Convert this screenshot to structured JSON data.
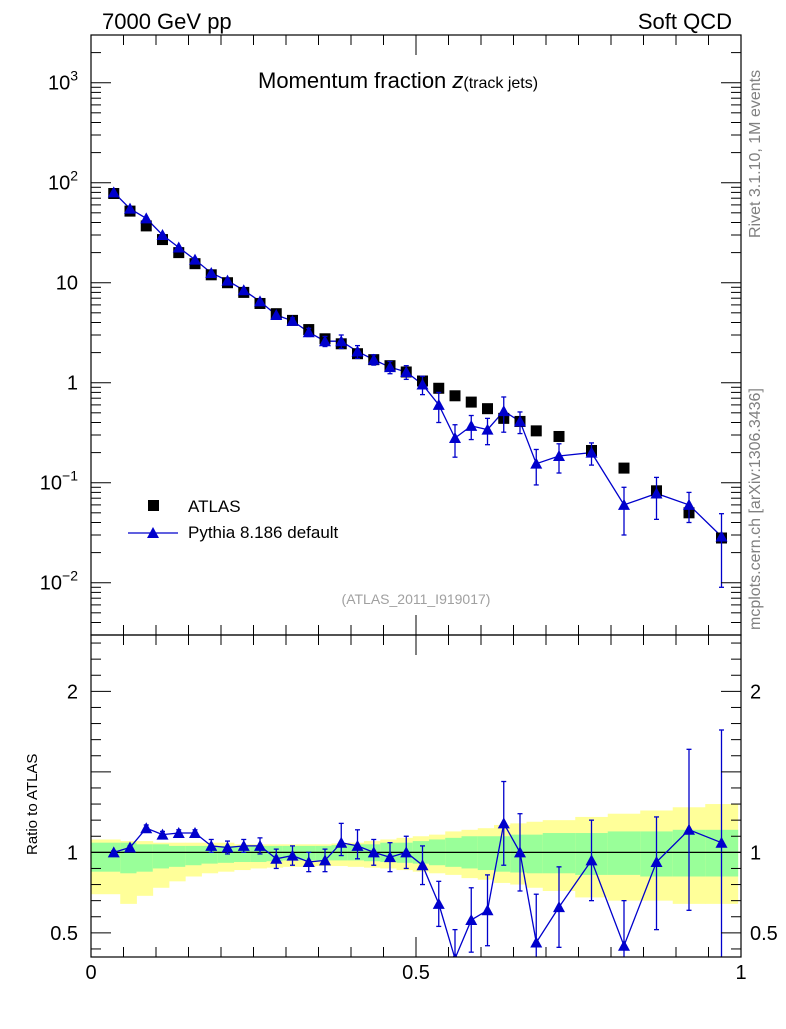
{
  "header": {
    "left": "7000 GeV pp",
    "right": "Soft QCD"
  },
  "side_labels": {
    "upper": "Rivet 3.1.10,  1M events",
    "lower": "mcplots.cern.ch [arXiv:1306.3436]"
  },
  "colors": {
    "mc": "#0000cc",
    "data": "#000000",
    "band_inner": "#99ff99",
    "band_outer": "#ffff99"
  },
  "chart_data": [
    {
      "type": "scatter",
      "panel": "main",
      "title_main": "Momentum fraction ",
      "title_var": "z",
      "title_sub": "(track jets)",
      "watermark": "(ATLAS_2011_I919017)",
      "xlim": [
        0,
        1
      ],
      "ylim": [
        0.003,
        3000
      ],
      "yscale": "log",
      "y_tick_labels": [
        {
          "value": 0.01,
          "base": "10",
          "exp": "−2"
        },
        {
          "value": 0.1,
          "base": "10",
          "exp": "−1"
        },
        {
          "value": 1,
          "base": "1",
          "exp": ""
        },
        {
          "value": 10,
          "base": "10",
          "exp": ""
        },
        {
          "value": 100,
          "base": "10",
          "exp": "2"
        },
        {
          "value": 1000,
          "base": "10",
          "exp": "3"
        }
      ],
      "legend": {
        "position": "bottom-left",
        "entries": [
          "ATLAS",
          "Pythia 8.186 default"
        ]
      },
      "series": [
        {
          "name": "ATLAS",
          "marker": "square",
          "x": [
            0.035,
            0.06,
            0.085,
            0.11,
            0.135,
            0.16,
            0.185,
            0.21,
            0.235,
            0.26,
            0.285,
            0.31,
            0.335,
            0.36,
            0.385,
            0.41,
            0.435,
            0.46,
            0.485,
            0.51,
            0.535,
            0.56,
            0.585,
            0.61,
            0.635,
            0.66,
            0.685,
            0.72,
            0.77,
            0.82,
            0.87,
            0.92,
            0.97
          ],
          "y": [
            78,
            52,
            37,
            27,
            20,
            15.5,
            12,
            10,
            8,
            6.2,
            4.9,
            4.2,
            3.4,
            2.75,
            2.45,
            1.95,
            1.7,
            1.48,
            1.28,
            1.04,
            0.88,
            0.74,
            0.64,
            0.55,
            0.44,
            0.41,
            0.33,
            0.29,
            0.21,
            0.14,
            0.083,
            0.05,
            0.028
          ]
        },
        {
          "name": "Pythia 8.186 default",
          "marker": "triangle",
          "x": [
            0.035,
            0.06,
            0.085,
            0.11,
            0.135,
            0.16,
            0.185,
            0.21,
            0.235,
            0.26,
            0.285,
            0.31,
            0.335,
            0.36,
            0.385,
            0.41,
            0.435,
            0.46,
            0.485,
            0.51,
            0.535,
            0.56,
            0.585,
            0.61,
            0.635,
            0.66,
            0.685,
            0.72,
            0.77,
            0.82,
            0.87,
            0.92,
            0.97
          ],
          "y": [
            80,
            55,
            44,
            30,
            22.5,
            17,
            12.5,
            10.5,
            8.4,
            6.5,
            4.75,
            4.15,
            3.2,
            2.6,
            2.6,
            2.05,
            1.7,
            1.43,
            1.28,
            0.96,
            0.6,
            0.28,
            0.37,
            0.34,
            0.52,
            0.41,
            0.155,
            0.185,
            0.2,
            0.06,
            0.078,
            0.06,
            0.029
          ],
          "err": [
            0,
            0,
            0,
            0,
            0,
            0,
            0,
            0,
            0,
            0,
            0,
            0.3,
            0.3,
            0.3,
            0.4,
            0.3,
            0.2,
            0.2,
            0.2,
            0.2,
            0.2,
            0.1,
            0.1,
            0.1,
            0.2,
            0.1,
            0.06,
            0.06,
            0.05,
            0.03,
            0.035,
            0.02,
            0.02
          ]
        }
      ]
    },
    {
      "type": "line",
      "panel": "ratio",
      "ylabel": "Ratio to ATLAS",
      "xlim": [
        0,
        1
      ],
      "ylim": [
        0.35,
        2.35
      ],
      "x_tick_labels": [
        {
          "value": 0,
          "label": "0"
        },
        {
          "value": 0.5,
          "label": "0.5"
        },
        {
          "value": 1,
          "label": "1"
        }
      ],
      "y_tick_labels": [
        {
          "value": 0.5,
          "label": "0.5"
        },
        {
          "value": 1,
          "label": "1"
        },
        {
          "value": 2,
          "label": "2"
        }
      ],
      "band_edges": [
        0.0,
        0.045,
        0.07,
        0.095,
        0.12,
        0.145,
        0.17,
        0.195,
        0.22,
        0.245,
        0.27,
        0.295,
        0.32,
        0.345,
        0.37,
        0.395,
        0.42,
        0.445,
        0.47,
        0.495,
        0.52,
        0.545,
        0.57,
        0.595,
        0.62,
        0.645,
        0.67,
        0.695,
        0.745,
        0.795,
        0.845,
        0.895,
        0.945,
        0.995
      ],
      "band_inner_lo": [
        0.88,
        0.87,
        0.88,
        0.9,
        0.91,
        0.92,
        0.93,
        0.935,
        0.94,
        0.94,
        0.945,
        0.95,
        0.95,
        0.95,
        0.95,
        0.95,
        0.945,
        0.94,
        0.935,
        0.93,
        0.92,
        0.91,
        0.9,
        0.89,
        0.88,
        0.875,
        0.87,
        0.87,
        0.86,
        0.86,
        0.85,
        0.85,
        0.85,
        0.85
      ],
      "band_inner_hi": [
        1.06,
        1.06,
        1.05,
        1.05,
        1.04,
        1.04,
        1.04,
        1.04,
        1.04,
        1.04,
        1.04,
        1.04,
        1.04,
        1.04,
        1.045,
        1.05,
        1.05,
        1.06,
        1.06,
        1.07,
        1.08,
        1.09,
        1.1,
        1.1,
        1.1,
        1.11,
        1.11,
        1.12,
        1.12,
        1.13,
        1.13,
        1.14,
        1.14,
        1.14
      ],
      "band_outer_lo": [
        0.74,
        0.68,
        0.73,
        0.78,
        0.82,
        0.85,
        0.87,
        0.88,
        0.89,
        0.9,
        0.905,
        0.91,
        0.91,
        0.915,
        0.915,
        0.91,
        0.905,
        0.9,
        0.89,
        0.88,
        0.87,
        0.86,
        0.84,
        0.83,
        0.81,
        0.8,
        0.78,
        0.76,
        0.72,
        0.7,
        0.7,
        0.68,
        0.68,
        0.68
      ],
      "band_outer_hi": [
        1.08,
        1.07,
        1.07,
        1.06,
        1.06,
        1.06,
        1.06,
        1.06,
        1.05,
        1.05,
        1.05,
        1.05,
        1.05,
        1.05,
        1.055,
        1.06,
        1.07,
        1.08,
        1.09,
        1.1,
        1.11,
        1.13,
        1.14,
        1.15,
        1.17,
        1.18,
        1.19,
        1.2,
        1.22,
        1.24,
        1.26,
        1.28,
        1.3,
        1.3
      ],
      "series": [
        {
          "name": "Pythia 8.186 default",
          "x": [
            0.035,
            0.06,
            0.085,
            0.11,
            0.135,
            0.16,
            0.185,
            0.21,
            0.235,
            0.26,
            0.285,
            0.31,
            0.335,
            0.36,
            0.385,
            0.41,
            0.435,
            0.46,
            0.485,
            0.51,
            0.535,
            0.56,
            0.585,
            0.61,
            0.635,
            0.66,
            0.685,
            0.72,
            0.77,
            0.82,
            0.87,
            0.92,
            0.97
          ],
          "y": [
            1.0,
            1.03,
            1.15,
            1.11,
            1.12,
            1.12,
            1.04,
            1.03,
            1.04,
            1.04,
            0.96,
            0.98,
            0.94,
            0.95,
            1.06,
            1.04,
            1.0,
            0.97,
            1.0,
            0.92,
            0.68,
            0.34,
            0.58,
            0.64,
            1.18,
            1.0,
            0.44,
            0.66,
            0.95,
            0.42,
            0.94,
            1.14,
            1.06
          ],
          "err_lo": [
            0.01,
            0.01,
            0.02,
            0.02,
            0.02,
            0.02,
            0.04,
            0.04,
            0.04,
            0.05,
            0.06,
            0.06,
            0.06,
            0.07,
            0.08,
            0.08,
            0.08,
            0.09,
            0.1,
            0.12,
            0.14,
            0.18,
            0.2,
            0.22,
            0.26,
            0.24,
            0.3,
            0.25,
            0.25,
            0.3,
            0.42,
            0.5,
            0.8
          ],
          "err_hi": [
            0.01,
            0.01,
            0.02,
            0.02,
            0.02,
            0.02,
            0.04,
            0.04,
            0.04,
            0.05,
            0.06,
            0.06,
            0.06,
            0.07,
            0.12,
            0.1,
            0.08,
            0.09,
            0.1,
            0.12,
            0.14,
            0.18,
            0.2,
            0.22,
            0.26,
            0.24,
            0.3,
            0.25,
            0.25,
            0.28,
            0.28,
            0.5,
            0.7
          ]
        }
      ]
    }
  ]
}
